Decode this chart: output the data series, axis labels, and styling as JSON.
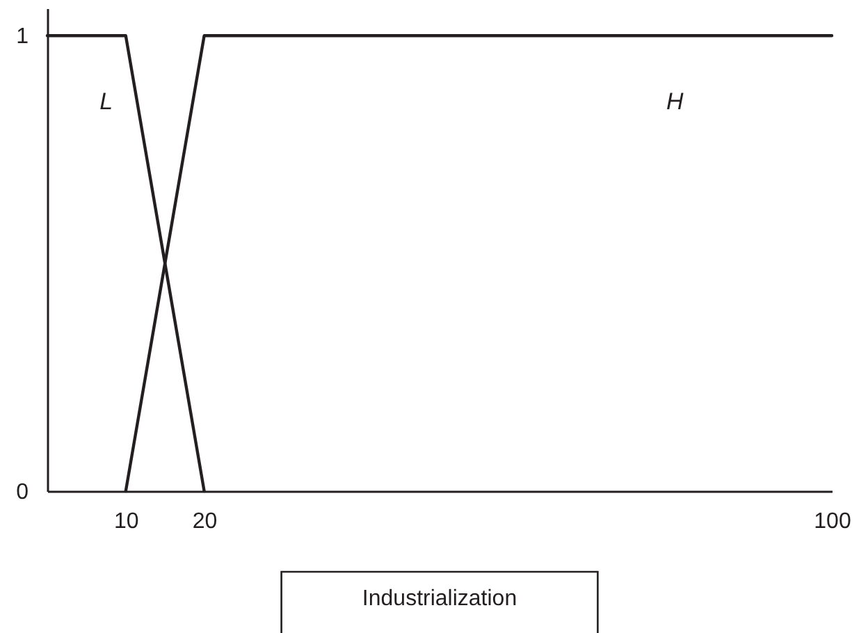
{
  "chart_data": {
    "type": "line",
    "xlabel": "Industrialization",
    "series": [
      {
        "name": "L",
        "color": "#231f20",
        "x": [
          0,
          10,
          20
        ],
        "values": [
          1,
          1,
          0
        ]
      },
      {
        "name": "H",
        "color": "#231f20",
        "x": [
          10,
          20,
          100
        ],
        "values": [
          0,
          1,
          1
        ]
      }
    ],
    "xlim": [
      0,
      100
    ],
    "xticks": [
      10,
      20,
      100
    ],
    "ylim": [
      0,
      1.06
    ],
    "yticks": [
      0,
      1
    ]
  }
}
